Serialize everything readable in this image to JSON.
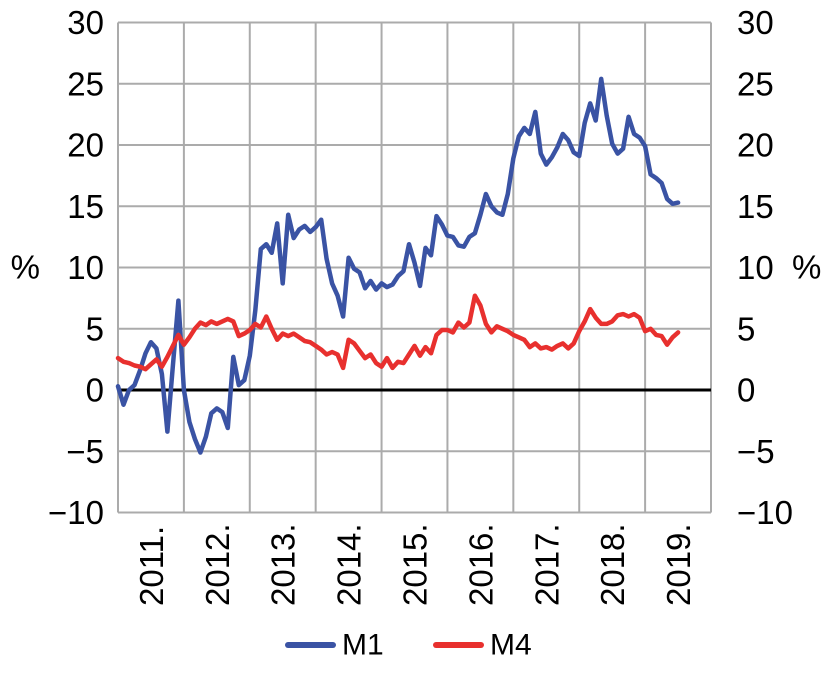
{
  "chart_data": {
    "type": "line",
    "title": "",
    "xlabel": "",
    "ylabel": "%",
    "ylim": [
      -10,
      30
    ],
    "ytick_step": 5,
    "ytick_values": [
      30,
      25,
      20,
      15,
      10,
      5,
      0,
      -5,
      -10
    ],
    "grid": true,
    "zero_line": true,
    "legend_position": "bottom-center",
    "x_start_month": "2011-01",
    "x_end_month": "2019-07",
    "x_axis_span_months": 108,
    "xtick_labels": [
      "2011.",
      "2012.",
      "2013.",
      "2014.",
      "2015.",
      "2016.",
      "2017.",
      "2018.",
      "2019."
    ],
    "series": [
      {
        "name": "M1",
        "color": "#3A53A4",
        "values": [
          0.3,
          -1.2,
          0.0,
          0.4,
          1.6,
          3.0,
          3.9,
          3.4,
          1.3,
          -3.4,
          2.0,
          7.3,
          0.0,
          -2.6,
          -4.0,
          -5.1,
          -3.8,
          -1.9,
          -1.5,
          -1.8,
          -3.1,
          2.7,
          0.4,
          0.8,
          2.8,
          6.5,
          11.5,
          11.9,
          11.2,
          13.6,
          8.7,
          14.3,
          12.4,
          13.1,
          13.4,
          12.9,
          13.3,
          13.9,
          10.7,
          8.7,
          7.7,
          6.0,
          10.8,
          9.9,
          9.6,
          8.3,
          8.9,
          8.2,
          8.7,
          8.4,
          8.6,
          9.3,
          9.7,
          11.9,
          10.4,
          8.5,
          11.6,
          11.0,
          14.2,
          13.5,
          12.6,
          12.5,
          11.8,
          11.7,
          12.5,
          12.8,
          14.3,
          16.0,
          15.0,
          14.5,
          14.3,
          16.0,
          18.9,
          20.7,
          21.4,
          20.9,
          22.7,
          19.3,
          18.4,
          19.0,
          19.8,
          20.9,
          20.4,
          19.4,
          19.1,
          21.8,
          23.4,
          22.0,
          25.4,
          22.4,
          20.1,
          19.3,
          19.7,
          22.3,
          20.9,
          20.6,
          19.9,
          17.6,
          17.3,
          16.9,
          15.6,
          15.2,
          15.3
        ]
      },
      {
        "name": "M4",
        "color": "#E8302E",
        "values": [
          2.6,
          2.3,
          2.2,
          2.0,
          1.9,
          1.7,
          2.1,
          2.5,
          1.9,
          2.7,
          3.6,
          4.5,
          3.7,
          4.3,
          5.0,
          5.5,
          5.3,
          5.6,
          5.4,
          5.6,
          5.8,
          5.6,
          4.4,
          4.6,
          4.9,
          5.4,
          5.1,
          6.0,
          5.0,
          4.1,
          4.6,
          4.4,
          4.6,
          4.3,
          4.0,
          3.9,
          3.6,
          3.3,
          2.9,
          3.1,
          2.9,
          1.8,
          4.1,
          3.8,
          3.2,
          2.6,
          2.9,
          2.2,
          1.9,
          2.6,
          1.8,
          2.3,
          2.2,
          2.9,
          3.6,
          2.8,
          3.5,
          3.0,
          4.5,
          4.9,
          4.9,
          4.7,
          5.5,
          5.1,
          5.5,
          7.7,
          6.9,
          5.4,
          4.7,
          5.2,
          5.0,
          4.8,
          4.5,
          4.3,
          4.1,
          3.5,
          3.8,
          3.4,
          3.5,
          3.3,
          3.6,
          3.8,
          3.4,
          3.8,
          4.8,
          5.6,
          6.6,
          5.9,
          5.4,
          5.4,
          5.6,
          6.1,
          6.2,
          6.0,
          6.2,
          5.9,
          4.8,
          5.0,
          4.5,
          4.4,
          3.7,
          4.3,
          4.7
        ]
      }
    ]
  },
  "colors": {
    "grid": "#ABABAB",
    "zero_line": "#000000",
    "text": "#000000",
    "background": "#FFFFFF"
  }
}
